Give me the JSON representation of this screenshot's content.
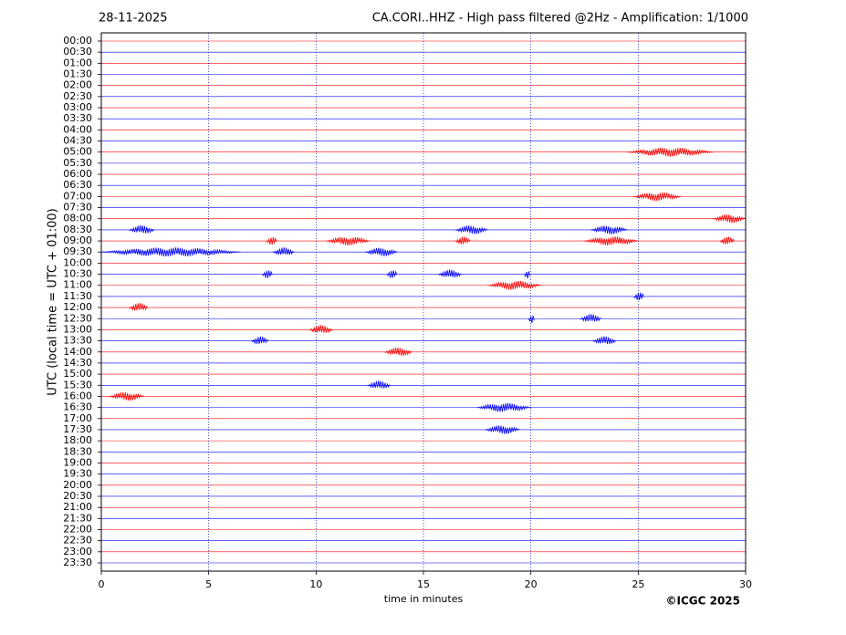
{
  "chart_data": {
    "type": "helicorder",
    "date": "28-11-2025",
    "title": "CA.CORI..HHZ - High pass filtered @2Hz - Amplification: 1/1000",
    "y_label": "UTC (local time = UTC + 01:00)",
    "x_label": "time in minutes",
    "copyright": "©ICGC 2025",
    "categories": [
      "00:00",
      "00:30",
      "01:00",
      "01:30",
      "02:00",
      "02:30",
      "03:00",
      "03:30",
      "04:00",
      "04:30",
      "05:00",
      "05:30",
      "06:00",
      "06:30",
      "07:00",
      "07:30",
      "08:00",
      "08:30",
      "09:00",
      "09:30",
      "10:00",
      "10:30",
      "11:00",
      "11:30",
      "12:00",
      "12:30",
      "13:00",
      "13:30",
      "14:00",
      "14:30",
      "15:00",
      "15:30",
      "16:00",
      "16:30",
      "17:00",
      "17:30",
      "18:00",
      "18:30",
      "19:00",
      "19:30",
      "20:00",
      "20:30",
      "21:00",
      "21:30",
      "22:00",
      "22:30",
      "23:00",
      "23:30"
    ],
    "row_colors": [
      "#ff0000",
      "#0000ff"
    ],
    "xlim": [
      0,
      30
    ],
    "xticks": [
      0,
      5,
      10,
      15,
      20,
      25,
      30
    ],
    "grid": true,
    "events": [
      {
        "row": 10,
        "start": 24.5,
        "end": 28.5
      },
      {
        "row": 14,
        "start": 24.8,
        "end": 27.0
      },
      {
        "row": 16,
        "start": 28.5,
        "end": 30
      },
      {
        "row": 17,
        "start": 1.3,
        "end": 2.5
      },
      {
        "row": 17,
        "start": 16.5,
        "end": 18
      },
      {
        "row": 17,
        "start": 22.8,
        "end": 24.5
      },
      {
        "row": 18,
        "start": 7.7,
        "end": 8.2
      },
      {
        "row": 18,
        "start": 10.5,
        "end": 12.5
      },
      {
        "row": 18,
        "start": 16.5,
        "end": 17.2
      },
      {
        "row": 18,
        "start": 22.5,
        "end": 25
      },
      {
        "row": 18,
        "start": 28.8,
        "end": 29.5
      },
      {
        "row": 19,
        "start": 0,
        "end": 6.5
      },
      {
        "row": 19,
        "start": 8,
        "end": 9
      },
      {
        "row": 19,
        "start": 12.3,
        "end": 13.8
      },
      {
        "row": 21,
        "start": 7.5,
        "end": 8
      },
      {
        "row": 21,
        "start": 13.3,
        "end": 13.8
      },
      {
        "row": 21,
        "start": 15.7,
        "end": 16.8
      },
      {
        "row": 21,
        "start": 19.7,
        "end": 20
      },
      {
        "row": 22,
        "start": 18,
        "end": 20.5
      },
      {
        "row": 23,
        "start": 24.8,
        "end": 25.3
      },
      {
        "row": 24,
        "start": 1.3,
        "end": 2.2
      },
      {
        "row": 25,
        "start": 19.9,
        "end": 20.2
      },
      {
        "row": 25,
        "start": 22.3,
        "end": 23.3
      },
      {
        "row": 26,
        "start": 9.7,
        "end": 10.8
      },
      {
        "row": 27,
        "start": 7,
        "end": 7.8
      },
      {
        "row": 27,
        "start": 22.9,
        "end": 24
      },
      {
        "row": 28,
        "start": 13.2,
        "end": 14.5
      },
      {
        "row": 31,
        "start": 12.4,
        "end": 13.5
      },
      {
        "row": 32,
        "start": 0.4,
        "end": 2
      },
      {
        "row": 33,
        "start": 17.5,
        "end": 20
      },
      {
        "row": 35,
        "start": 17.9,
        "end": 19.5
      }
    ]
  }
}
